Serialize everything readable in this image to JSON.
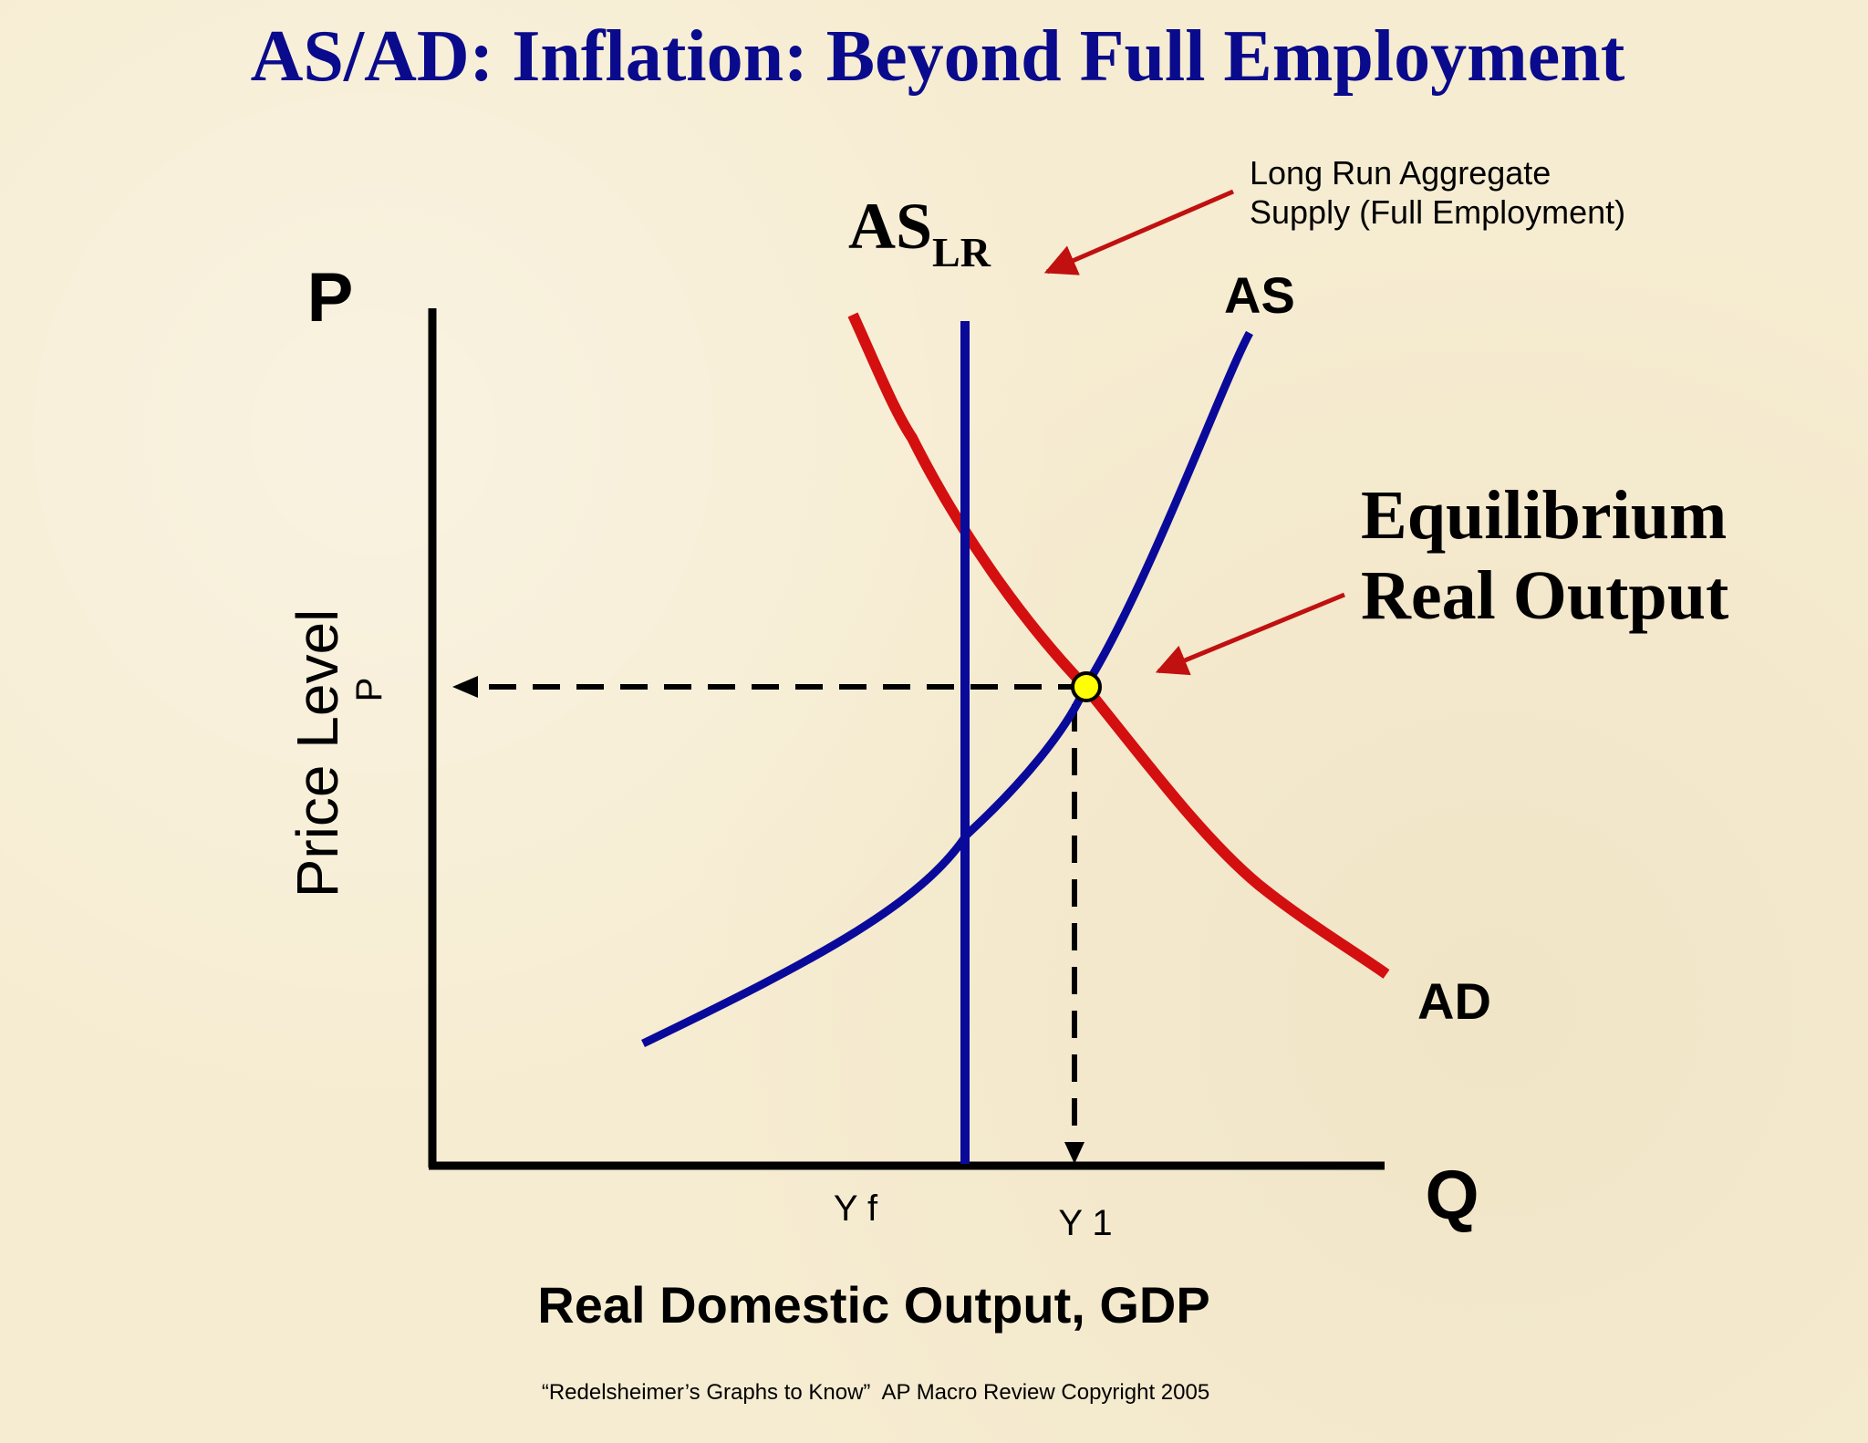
{
  "title": "AS/AD: Inflation: Beyond Full Employment",
  "axes": {
    "y_letter": "P",
    "x_letter": "Q",
    "y_label": "Price Level",
    "x_label": "Real Domestic Output, GDP",
    "y_tick": "P",
    "x_tick_yf": "Y f",
    "x_tick_y1": "Y 1"
  },
  "curves": {
    "as_lr_main": "AS",
    "as_lr_sub": "LR",
    "as": "AS",
    "ad": "AD"
  },
  "annotations": {
    "lras_line1": "Long Run Aggregate",
    "lras_line2": "Supply (Full Employment)",
    "equilibrium_line1": "Equilibrium",
    "equilibrium_line2": "Real Output"
  },
  "footer": "“Redelsheimer’s Graphs to Know”  AP Macro Review Copyright 2005",
  "colors": {
    "title": "#0a0a8c",
    "as": "#0a0a9a",
    "ad": "#d40f0f",
    "equilibrium_point": "#ffff00",
    "arrow": "#c01010"
  }
}
